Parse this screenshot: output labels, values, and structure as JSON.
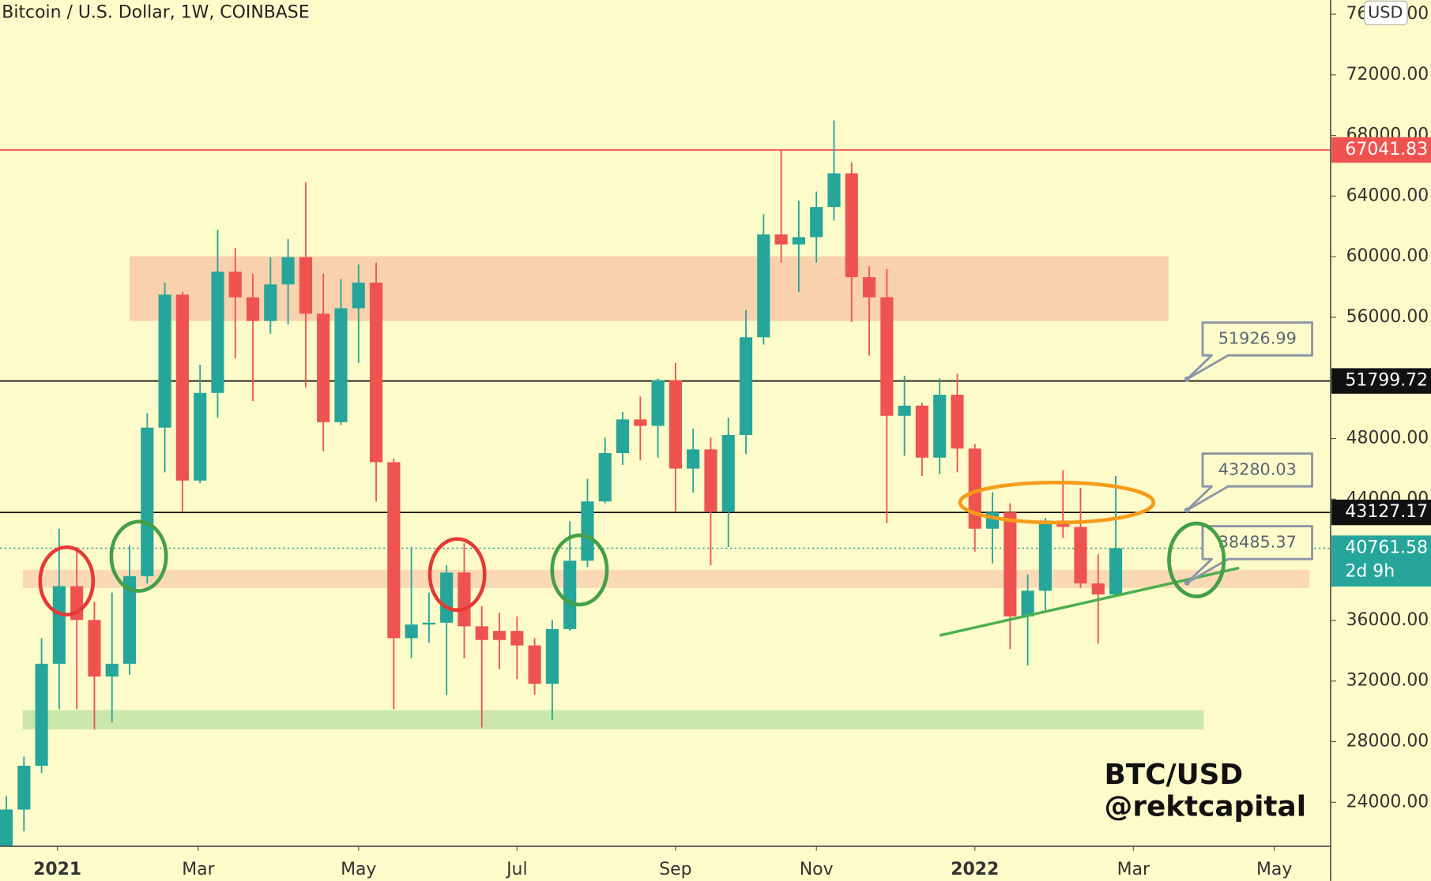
{
  "chart_data": {
    "type": "candlestick",
    "title": "Bitcoin / U.S. Dollar, 1W, COINBASE",
    "currency": "USD",
    "up_color": "#26a69a",
    "down_color": "#ef5350",
    "candles": {
      "open": [
        21110,
        23520,
        26410,
        33140,
        38260,
        36030,
        32300,
        33140,
        38920,
        48720,
        57500,
        45230,
        51010,
        59010,
        57320,
        55760,
        58170,
        59970,
        56240,
        49080,
        56600,
        58290,
        46440,
        34830,
        35730,
        35850,
        39160,
        35610,
        35310,
        35310,
        34350,
        31820,
        35430,
        39940,
        43850,
        47040,
        49260,
        48840,
        51850,
        46020,
        47280,
        43190,
        48240,
        54680,
        61470,
        60810,
        61290,
        63280,
        65500,
        58650,
        57320,
        49500,
        50170,
        46740,
        50890,
        47340,
        42050,
        43130,
        36270,
        37960,
        42590,
        42170,
        38440,
        37710
      ],
      "high": [
        24420,
        27010,
        34830,
        42050,
        40840,
        37230,
        37840,
        40960,
        49680,
        58290,
        57680,
        52870,
        61770,
        60570,
        58890,
        59970,
        61170,
        64900,
        58890,
        58530,
        59490,
        59610,
        46680,
        40840,
        37840,
        39640,
        41080,
        36930,
        36510,
        36270,
        34830,
        36030,
        42530,
        45350,
        48060,
        49740,
        50770,
        51970,
        52990,
        48660,
        48060,
        49380,
        56480,
        62800,
        67070,
        63700,
        64300,
        68990,
        66230,
        59370,
        59190,
        52150,
        50350,
        51970,
        52270,
        47640,
        44450,
        43730,
        39040,
        42770,
        45900,
        44750,
        40360,
        45530
      ],
      "low": [
        20990,
        22080,
        25930,
        30140,
        30140,
        28810,
        29290,
        32420,
        38440,
        45770,
        43130,
        45050,
        49380,
        53290,
        50470,
        54920,
        55520,
        51370,
        47160,
        48900,
        52990,
        43850,
        30140,
        33500,
        34530,
        31100,
        33500,
        28930,
        32780,
        32120,
        31100,
        29410,
        35310,
        39520,
        43730,
        46260,
        46560,
        46740,
        43130,
        44450,
        39640,
        40840,
        46980,
        54200,
        59610,
        57680,
        59610,
        62380,
        55700,
        53470,
        42410,
        46860,
        45530,
        45650,
        45770,
        40540,
        39760,
        34110,
        33020,
        36510,
        41440,
        38140,
        34470,
        37640
      ],
      "close": [
        23520,
        26410,
        33140,
        38260,
        36030,
        32300,
        33140,
        38920,
        48720,
        57500,
        45230,
        51010,
        59010,
        57320,
        55760,
        58170,
        59970,
        56240,
        49080,
        56600,
        58290,
        46440,
        34830,
        35730,
        35850,
        39160,
        35610,
        34710,
        34710,
        34350,
        31820,
        35430,
        39940,
        43850,
        47040,
        49260,
        48840,
        51850,
        46020,
        47280,
        43190,
        48240,
        54680,
        61470,
        60810,
        61290,
        63280,
        65500,
        58650,
        57320,
        49500,
        50170,
        46740,
        50890,
        47340,
        42050,
        43130,
        36270,
        37960,
        42590,
        42170,
        38440,
        37710,
        40761.58
      ]
    },
    "xlim": [
      -0.36,
      75.2
    ],
    "xticks": [
      {
        "value": 2.9,
        "label": "2021"
      },
      {
        "value": 10.9,
        "label": "Mar"
      },
      {
        "value": 20.0,
        "label": "May"
      },
      {
        "value": 29.0,
        "label": "Jul"
      },
      {
        "value": 38.0,
        "label": "Sep"
      },
      {
        "value": 46.0,
        "label": "Nov"
      },
      {
        "value": 55.0,
        "label": "2022"
      },
      {
        "value": 64.0,
        "label": "Mar"
      },
      {
        "value": 72.0,
        "label": "May"
      }
    ],
    "ylim": [
      21100,
      76930
    ],
    "yticks": [
      {
        "value": 24000,
        "label": "24000.00"
      },
      {
        "value": 28000,
        "label": "28000.00"
      },
      {
        "value": 32000,
        "label": "32000.00"
      },
      {
        "value": 36000,
        "label": "36000.00"
      },
      {
        "value": 40000,
        "label": "40000.00"
      },
      {
        "value": 44000,
        "label": "44000.00"
      },
      {
        "value": 48000,
        "label": "48000.00"
      },
      {
        "value": 52000,
        "label": "52000.00"
      },
      {
        "value": 56000,
        "label": "56000.00"
      },
      {
        "value": 60000,
        "label": "60000.00"
      },
      {
        "value": 64000,
        "label": "64000.00"
      },
      {
        "value": 68000,
        "label": "68000.00"
      },
      {
        "value": 72000,
        "label": "72000.00"
      },
      {
        "value": 76000,
        "label": "76000.00"
      }
    ],
    "zones": [
      {
        "x": [
          7.0,
          66.0
        ],
        "y": [
          55760,
          60030
        ],
        "color": "#f9c9a8"
      },
      {
        "x": [
          0.93,
          74.0
        ],
        "y": [
          38140,
          39340
        ],
        "color": "#f9d4b0"
      },
      {
        "x": [
          0.93,
          68.0
        ],
        "y": [
          28810,
          30080
        ],
        "color": "#c2e3a6"
      }
    ],
    "trendline": {
      "x": [
        53.0,
        70.0
      ],
      "y": [
        35010,
        39460
      ],
      "color": "#4caf50"
    },
    "price_lines": [
      {
        "value": 67041.83,
        "color": "#ef5350",
        "style": "solid"
      },
      {
        "value": 51799.72,
        "color": "#111111",
        "style": "solid"
      },
      {
        "value": 43127.17,
        "color": "#111111",
        "style": "solid"
      },
      {
        "value": 40761.58,
        "color": "#26a69a",
        "style": "dotted"
      }
    ],
    "countdown": "2d 9h",
    "callouts": [
      {
        "x": 67.05,
        "value": 51926.99
      },
      {
        "x": 67.05,
        "value": 43280.03
      },
      {
        "x": 67.05,
        "value": 38485.37
      }
    ],
    "watermark": [
      "BTC/USD",
      "@rektcapital"
    ]
  }
}
